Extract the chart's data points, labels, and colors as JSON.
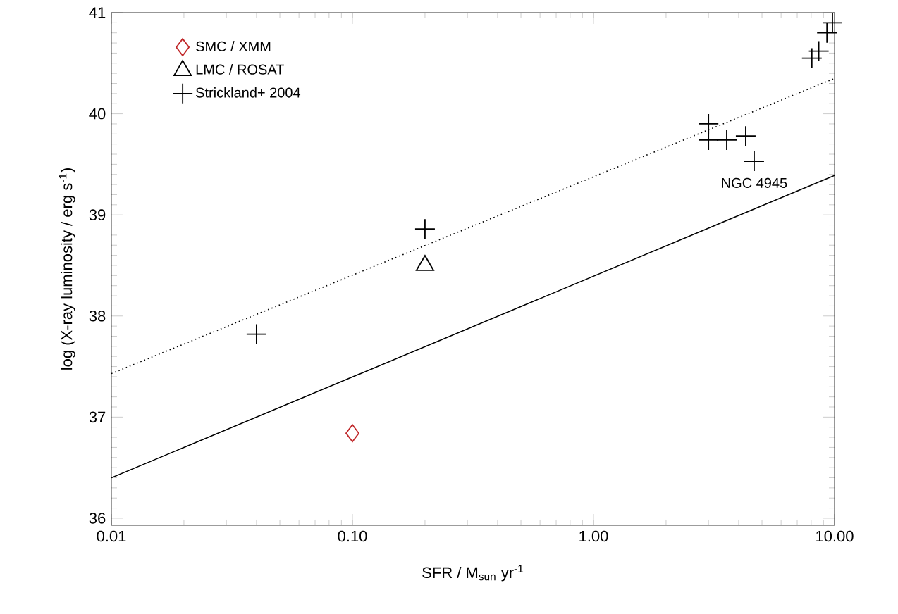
{
  "chart_data": {
    "type": "scatter",
    "xlabel": "SFR / M$_{sun}$ yr$^{-1}$",
    "ylabel": "log (X-ray luminosity / erg s$^{-1}$)",
    "log": "x",
    "xlim": [
      0.01,
      10
    ],
    "ylim": [
      35.93,
      41
    ],
    "xticks": [
      {
        "value": 0.01,
        "label": "0.01"
      },
      {
        "value": 0.1,
        "label": "0.10"
      },
      {
        "value": 1,
        "label": "1.00"
      },
      {
        "value": 10,
        "label": "10.00"
      }
    ],
    "yticks": [
      36,
      37,
      38,
      39,
      40,
      41
    ],
    "grid": false,
    "legend": "top left",
    "series": [
      {
        "name": "SMC / XMM",
        "marker": "diamond",
        "color": "#c0282a",
        "x": [
          0.1
        ],
        "values": [
          36.84
        ]
      },
      {
        "name": "LMC / ROSAT",
        "marker": "triangle",
        "color": "#000000",
        "x": [
          0.2
        ],
        "values": [
          38.5
        ]
      },
      {
        "name": "Strickland+ 2004",
        "marker": "cross",
        "color": "#000000",
        "x": [
          0.04,
          0.2,
          3.0,
          3.0,
          3.57,
          4.28,
          4.64,
          8.05,
          8.6,
          9.3,
          9.8
        ],
        "values": [
          37.82,
          38.86,
          39.9,
          39.74,
          39.74,
          39.78,
          39.53,
          40.55,
          40.62,
          40.8,
          40.9
        ]
      },
      {
        "type": "line",
        "marker": "none",
        "line_style": "solid",
        "color": "#000000",
        "x": [
          0.01,
          10
        ],
        "values": [
          36.4,
          39.39
        ]
      },
      {
        "type": "line",
        "marker": "none",
        "line_style": "dotted",
        "color": "#000000",
        "x": [
          0.01,
          10
        ],
        "values": [
          37.43,
          40.35
        ]
      }
    ],
    "annotations": [
      {
        "text": "NGC 4945",
        "x": 4.64,
        "y": 39.53
      }
    ]
  }
}
